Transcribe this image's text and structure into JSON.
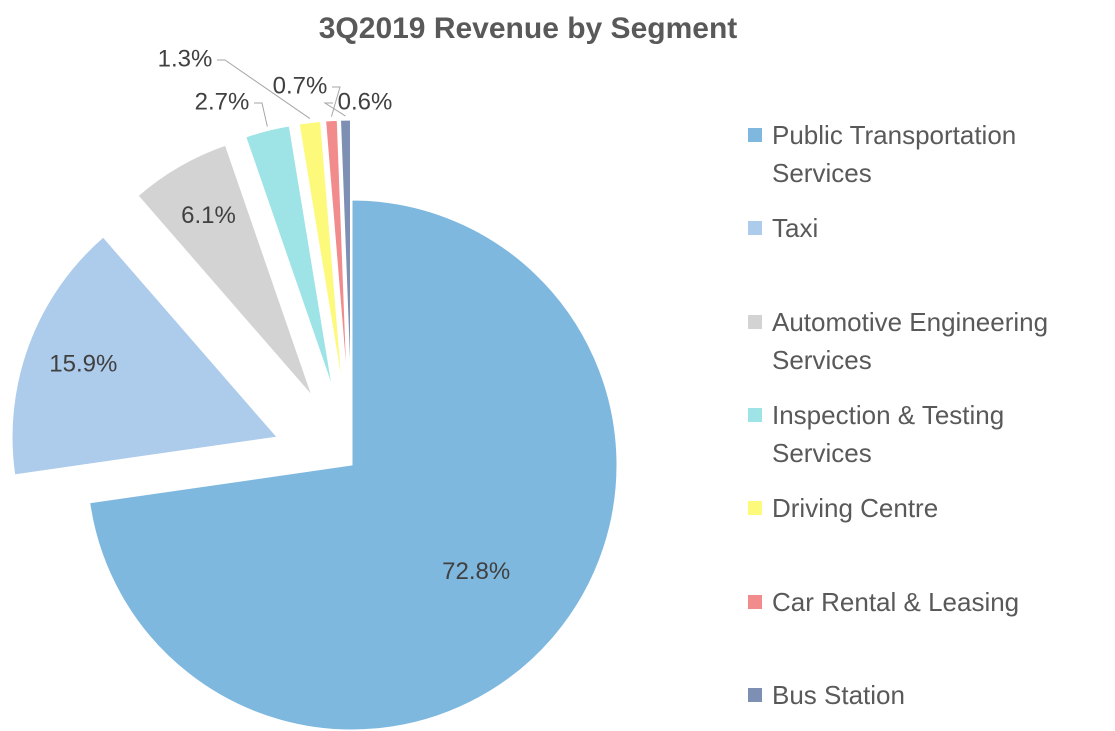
{
  "chart_data": {
    "type": "pie",
    "title": "3Q2019 Revenue by Segment",
    "categories": [
      "Public Transportation Services",
      "Taxi",
      "Automotive Engineering Services",
      "Inspection & Testing Services",
      "Driving Centre",
      "Car Rental & Leasing",
      "Bus Station"
    ],
    "values": [
      72.8,
      15.9,
      6.1,
      2.7,
      1.3,
      0.7,
      0.6
    ],
    "value_labels": [
      "72.8%",
      "15.9%",
      "6.1%",
      "2.7%",
      "1.3%",
      "0.7%",
      "0.6%"
    ],
    "colors": [
      "#7fb8df",
      "#adcbea",
      "#d3d3d3",
      "#9ee3e6",
      "#fdf97a",
      "#f28b8b",
      "#7d8fb3"
    ],
    "legend": "right"
  }
}
